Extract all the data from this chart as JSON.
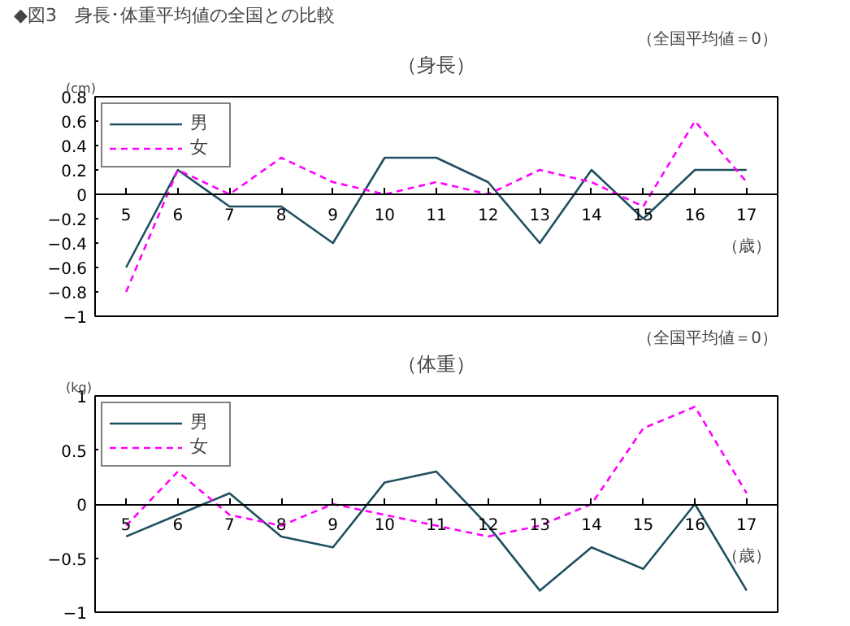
{
  "chart_data": [
    {
      "type": "line",
      "subtitle": "◆図3　身長･体重平均値の全国との比較",
      "title": "（身長）",
      "annotations": [
        "（全国平均値＝0）"
      ],
      "ylabel": "(cm)",
      "xlabel": "（歳）",
      "categories": [
        "5",
        "6",
        "7",
        "8",
        "9",
        "10",
        "11",
        "12",
        "13",
        "14",
        "15",
        "16",
        "17"
      ],
      "series": [
        {
          "name": "男",
          "color": "#1f5060",
          "line_style": "solid",
          "values": [
            -0.6,
            0.2,
            -0.1,
            -0.1,
            -0.4,
            0.3,
            0.3,
            0.1,
            -0.4,
            0.2,
            -0.2,
            0.2,
            0.2
          ]
        },
        {
          "name": "女",
          "color": "#ff00ff",
          "line_style": "dashed",
          "values": [
            -0.8,
            0.2,
            0.0,
            0.3,
            0.1,
            0.0,
            0.1,
            0.0,
            0.2,
            0.1,
            -0.1,
            0.6,
            0.1
          ]
        }
      ],
      "ylim": [
        -1,
        0.8
      ],
      "yticks": [
        -1,
        -0.8,
        -0.6,
        -0.4,
        -0.2,
        0,
        0.2,
        0.4,
        0.6,
        0.8
      ],
      "grid": false,
      "legend": "top left",
      "marker": "none"
    },
    {
      "type": "line",
      "title": "（体重）",
      "annotations": [
        "（全国平均値＝0）"
      ],
      "ylabel": "(kg)",
      "xlabel": "（歳）",
      "categories": [
        "5",
        "6",
        "7",
        "8",
        "9",
        "10",
        "11",
        "12",
        "13",
        "14",
        "15",
        "16",
        "17"
      ],
      "series": [
        {
          "name": "男",
          "color": "#1f5060",
          "line_style": "solid",
          "values": [
            -0.3,
            -0.1,
            0.1,
            -0.3,
            -0.4,
            0.2,
            0.3,
            -0.2,
            -0.8,
            -0.4,
            -0.6,
            0.0,
            -0.8
          ]
        },
        {
          "name": "女",
          "color": "#ff00ff",
          "line_style": "dashed",
          "values": [
            -0.2,
            0.3,
            -0.1,
            -0.2,
            0.0,
            -0.1,
            -0.2,
            -0.3,
            -0.2,
            0.0,
            0.7,
            0.9,
            0.1
          ]
        }
      ],
      "ylim": [
        -1,
        1
      ],
      "yticks": [
        -1,
        -0.5,
        0,
        0.5,
        1
      ],
      "grid": false,
      "legend": "top left",
      "marker": "none"
    }
  ]
}
